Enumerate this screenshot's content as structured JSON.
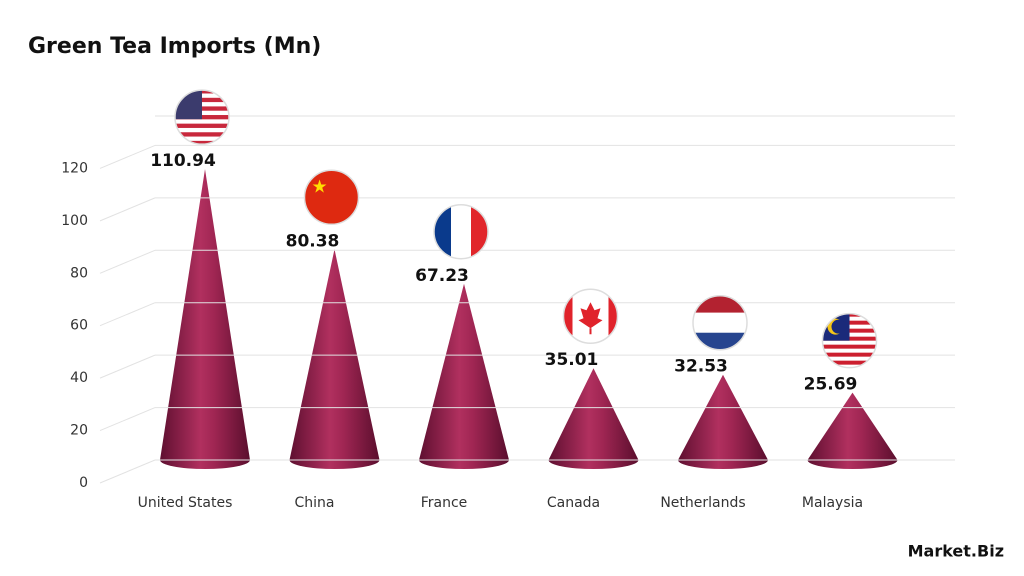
{
  "chart_data": {
    "type": "cone",
    "title": "Green Tea Imports (Mn)",
    "categories": [
      "United States",
      "China",
      "France",
      "Canada",
      "Netherlands",
      "Malaysia"
    ],
    "values": [
      110.94,
      80.38,
      67.23,
      35.01,
      32.53,
      25.69
    ],
    "color": "#8e1d4c",
    "ylim": [
      0,
      140
    ],
    "yticks": [
      0,
      20,
      40,
      60,
      80,
      100,
      120
    ],
    "grid": true,
    "brand": "Market.Biz"
  }
}
